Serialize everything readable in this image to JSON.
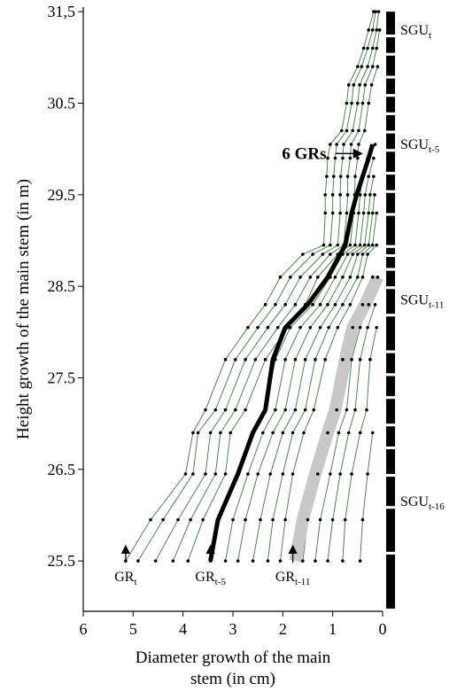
{
  "chart_data": {
    "type": "line",
    "xlabel_lines": [
      "Diameter growth of the main",
      "stem (in cm)"
    ],
    "ylabel": "Height growth of the main stem (in m)",
    "xlim": [
      6,
      0
    ],
    "ylim": [
      24.95,
      31.55
    ],
    "x_ticks": [
      {
        "value": 6,
        "label": "6"
      },
      {
        "value": 5,
        "label": "5"
      },
      {
        "value": 4,
        "label": "4"
      },
      {
        "value": 3,
        "label": "3"
      },
      {
        "value": 2,
        "label": "2"
      },
      {
        "value": 1,
        "label": "1"
      },
      {
        "value": 0,
        "label": "0"
      }
    ],
    "y_ticks": [
      {
        "value": 25.5,
        "label": "25.5"
      },
      {
        "value": 26.5,
        "label": "26.5"
      },
      {
        "value": 27.5,
        "label": "27.5"
      },
      {
        "value": 28.5,
        "label": "28.5"
      },
      {
        "value": 29.5,
        "label": "29.5"
      },
      {
        "value": 30.5,
        "label": "30.5"
      },
      {
        "value": 31.5,
        "label": "31,5"
      }
    ],
    "heights": [
      25.5,
      25.95,
      26.45,
      26.9,
      27.15,
      27.7,
      28.05,
      28.3,
      28.6,
      28.85,
      28.95,
      29.3,
      29.5,
      29.7,
      29.9,
      30.05,
      30.2,
      30.5,
      30.7,
      30.9,
      31.1,
      31.3,
      31.5
    ],
    "profiles_x": [
      [
        5.15,
        4.65,
        3.95,
        3.8,
        3.55,
        3.15,
        2.7,
        2.35,
        2.05,
        1.6,
        1.18,
        1.15,
        1.15,
        1.12,
        1.1,
        1.05,
        0.82,
        0.72,
        0.68,
        0.5,
        0.38,
        0.28,
        0.18
      ],
      [
        4.9,
        4.4,
        3.8,
        3.7,
        3.35,
        2.95,
        2.5,
        2.15,
        1.85,
        1.4,
        1.05,
        1.0,
        1.0,
        0.98,
        0.95,
        0.92,
        0.72,
        0.62,
        0.58,
        0.42,
        0.3,
        0.2,
        0.14
      ],
      [
        4.55,
        4.1,
        3.55,
        3.45,
        3.15,
        2.75,
        2.3,
        1.95,
        1.65,
        1.2,
        0.9,
        0.85,
        0.85,
        0.84,
        0.8,
        0.78,
        0.6,
        0.5,
        0.46,
        0.3,
        0.2,
        0.12,
        0.08
      ],
      [
        4.2,
        3.85,
        3.35,
        3.25,
        2.95,
        2.55,
        2.1,
        1.75,
        1.45,
        1.05,
        0.78,
        0.72,
        0.7,
        0.7,
        0.65,
        0.63,
        0.48,
        0.4,
        0.35,
        0.2,
        0.12,
        0.06
      ],
      [
        3.9,
        3.6,
        3.15,
        3.05,
        2.75,
        2.35,
        1.9,
        1.55,
        1.3,
        0.9,
        0.65,
        0.58,
        0.56,
        0.55,
        0.5,
        0.48,
        0.36,
        0.28,
        0.22,
        0.1
      ],
      [
        3.45,
        3.3,
        2.9,
        2.6,
        2.35,
        2.15,
        1.85,
        1.4,
        1.05,
        0.8,
        0.55,
        0.48,
        0.45,
        0.4,
        0.3,
        0.15
      ],
      [
        3.15,
        3.0,
        2.7,
        2.4,
        2.15,
        1.95,
        1.65,
        1.25,
        0.95,
        0.7,
        0.45,
        0.38,
        0.35,
        0.28,
        0.18
      ],
      [
        2.9,
        2.75,
        2.5,
        2.2,
        1.95,
        1.75,
        1.45,
        1.1,
        0.8,
        0.6,
        0.36,
        0.28,
        0.25,
        0.18
      ],
      [
        2.6,
        2.45,
        2.25,
        2.0,
        1.75,
        1.55,
        1.25,
        0.95,
        0.65,
        0.5,
        0.28,
        0.2,
        0.16
      ],
      [
        2.3,
        2.2,
        2.0,
        1.8,
        1.55,
        1.35,
        1.08,
        0.8,
        0.5,
        0.4,
        0.2,
        0.12
      ],
      [
        2.05,
        1.95,
        1.8,
        1.58,
        1.38,
        1.15,
        0.9,
        0.65,
        0.4,
        0.3,
        0.12
      ],
      [
        1.6,
        1.5,
        1.3,
        1.1,
        0.92,
        0.8,
        0.6,
        0.4,
        0.2
      ],
      [
        1.35,
        1.25,
        1.05,
        0.88,
        0.72,
        0.62,
        0.45,
        0.28,
        0.1
      ],
      [
        1.1,
        1.0,
        0.85,
        0.68,
        0.55,
        0.45,
        0.3,
        0.15
      ],
      [
        0.8,
        0.75,
        0.62,
        0.45,
        0.32,
        0.25,
        0.12
      ],
      [
        0.45,
        0.4,
        0.3,
        0.2
      ]
    ],
    "bold_profile": {
      "heights": [
        25.5,
        25.95,
        26.45,
        26.9,
        27.15,
        27.7,
        28.05,
        28.3,
        28.6,
        28.85,
        28.95,
        29.3,
        29.5,
        29.7,
        29.9,
        30.05
      ],
      "x": [
        3.45,
        3.3,
        2.9,
        2.6,
        2.35,
        2.2,
        1.95,
        1.5,
        1.1,
        0.85,
        0.75,
        0.62,
        0.52,
        0.4,
        0.28,
        0.2
      ],
      "color": "#000000"
    },
    "gray_profile": {
      "heights": [
        25.5,
        25.95,
        26.45,
        26.9,
        27.15,
        27.7,
        28.05,
        28.3,
        28.6
      ],
      "x": [
        1.75,
        1.6,
        1.35,
        1.1,
        0.95,
        0.75,
        0.6,
        0.35,
        0.1
      ],
      "color": "#c8c8c8"
    },
    "thin_line_color": "#3a7a3a",
    "gr_annotations": [
      {
        "x": 5.15,
        "base": "GR",
        "sub": "t"
      },
      {
        "x": 3.45,
        "base": "GR",
        "sub": "t-5"
      },
      {
        "x": 1.8,
        "base": "GR",
        "sub": "t-11"
      }
    ],
    "sgu_segments": [
      [
        31.5,
        31.25
      ],
      [
        31.22,
        31.05
      ],
      [
        31.02,
        30.8
      ],
      [
        30.77,
        30.6
      ],
      [
        30.57,
        30.4
      ],
      [
        30.37,
        30.2
      ],
      [
        30.17,
        30.0
      ],
      [
        29.97,
        29.75
      ],
      [
        29.72,
        29.55
      ],
      [
        29.52,
        29.3
      ],
      [
        29.27,
        28.95
      ],
      [
        28.92,
        28.85
      ],
      [
        28.82,
        28.7
      ],
      [
        28.67,
        28.5
      ],
      [
        28.47,
        28.2
      ],
      [
        28.17,
        27.8
      ],
      [
        27.77,
        27.55
      ],
      [
        27.52,
        27.3
      ],
      [
        27.27,
        27.0
      ],
      [
        26.97,
        26.75
      ],
      [
        26.72,
        26.45
      ],
      [
        26.42,
        26.1
      ],
      [
        26.07,
        25.6
      ],
      [
        25.57,
        24.98
      ]
    ],
    "sgu_labels": [
      {
        "y": 31.3,
        "base": "SGU",
        "sub": "t"
      },
      {
        "y": 30.05,
        "base": "SGU",
        "sub": "t-5"
      },
      {
        "y": 28.35,
        "base": "SGU",
        "sub": "t-11"
      },
      {
        "y": 26.15,
        "base": "SGU",
        "sub": "t-16"
      }
    ],
    "callout": {
      "text": "6 GRs",
      "y": 29.95,
      "arrow_from_x": 0.95,
      "arrow_to_x": 0.42
    }
  }
}
